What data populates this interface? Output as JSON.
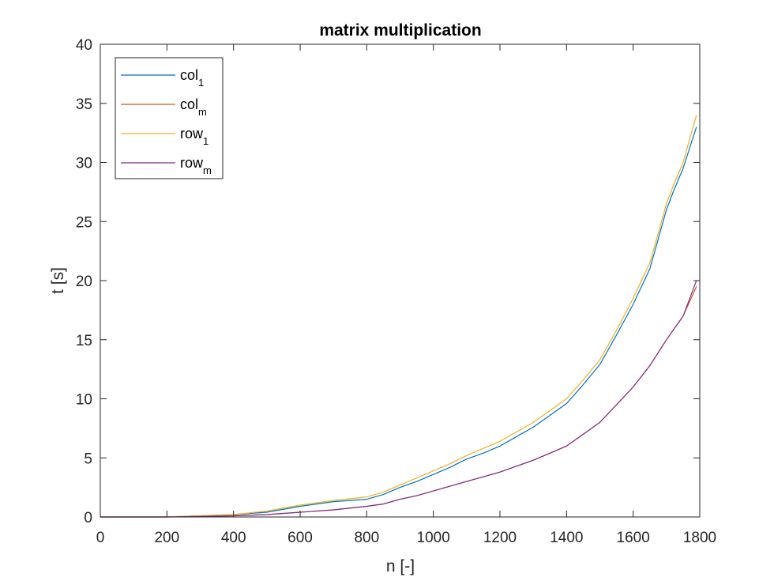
{
  "chart_data": {
    "type": "line",
    "title": "matrix multiplication",
    "xlabel": "n [-]",
    "ylabel": "t [s]",
    "xlim": [
      0,
      1800
    ],
    "ylim": [
      0,
      40
    ],
    "xticks": [
      0,
      200,
      400,
      600,
      800,
      1000,
      1200,
      1400,
      1600,
      1800
    ],
    "yticks": [
      0,
      5,
      10,
      15,
      20,
      25,
      30,
      35,
      40
    ],
    "grid": false,
    "legend_position": "top-left",
    "series": [
      {
        "name": "col",
        "subscript": "1",
        "color": "#0072BD",
        "x": [
          0,
          200,
          400,
          500,
          600,
          700,
          800,
          850,
          900,
          950,
          1000,
          1050,
          1100,
          1150,
          1200,
          1250,
          1300,
          1350,
          1400,
          1450,
          1500,
          1550,
          1600,
          1650,
          1700,
          1720,
          1750,
          1790
        ],
        "y": [
          0,
          0,
          0.2,
          0.4,
          0.9,
          1.3,
          1.5,
          1.9,
          2.5,
          3.0,
          3.6,
          4.2,
          4.9,
          5.4,
          6.0,
          6.8,
          7.6,
          8.6,
          9.6,
          11.2,
          12.9,
          15.4,
          18.0,
          21.0,
          26.0,
          27.5,
          29.5,
          33.0
        ]
      },
      {
        "name": "col",
        "subscript": "m",
        "color": "#D95319",
        "x": [
          0,
          200,
          400,
          500,
          600,
          700,
          800,
          850,
          900,
          950,
          1000,
          1050,
          1100,
          1150,
          1200,
          1250,
          1300,
          1350,
          1400,
          1450,
          1500,
          1550,
          1600,
          1650,
          1700,
          1720,
          1750,
          1790
        ],
        "y": [
          0,
          0,
          0.1,
          0.2,
          0.4,
          0.6,
          0.9,
          1.1,
          1.5,
          1.8,
          2.2,
          2.6,
          3.0,
          3.4,
          3.8,
          4.3,
          4.8,
          5.4,
          6.0,
          7.0,
          8.0,
          9.5,
          11.0,
          12.8,
          15.0,
          15.8,
          17.0,
          19.5
        ]
      },
      {
        "name": "row",
        "subscript": "1",
        "color": "#EDB120",
        "x": [
          0,
          200,
          400,
          500,
          600,
          700,
          800,
          850,
          900,
          950,
          1000,
          1050,
          1100,
          1150,
          1200,
          1250,
          1300,
          1350,
          1400,
          1450,
          1500,
          1550,
          1600,
          1650,
          1700,
          1720,
          1750,
          1790
        ],
        "y": [
          0,
          0,
          0.2,
          0.5,
          1.0,
          1.4,
          1.7,
          2.1,
          2.7,
          3.3,
          3.9,
          4.5,
          5.2,
          5.8,
          6.4,
          7.2,
          8.0,
          9.0,
          10.0,
          11.6,
          13.3,
          15.8,
          18.5,
          21.5,
          26.5,
          28.0,
          30.0,
          34.0
        ]
      },
      {
        "name": "row",
        "subscript": "m",
        "color": "#7E2F8E",
        "x": [
          0,
          200,
          400,
          500,
          600,
          700,
          800,
          850,
          900,
          950,
          1000,
          1050,
          1100,
          1150,
          1200,
          1250,
          1300,
          1350,
          1400,
          1450,
          1500,
          1550,
          1600,
          1650,
          1700,
          1720,
          1750,
          1790
        ],
        "y": [
          0,
          0,
          0.1,
          0.2,
          0.4,
          0.6,
          0.9,
          1.1,
          1.5,
          1.8,
          2.2,
          2.6,
          3.0,
          3.4,
          3.8,
          4.3,
          4.8,
          5.4,
          6.0,
          7.0,
          8.0,
          9.5,
          11.0,
          12.8,
          15.0,
          15.8,
          17.0,
          20.0
        ]
      }
    ]
  }
}
